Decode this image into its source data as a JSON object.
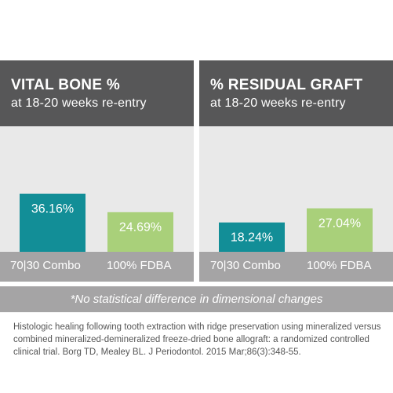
{
  "chart_data": [
    {
      "type": "bar",
      "title": "VITAL BONE %",
      "subtitle": "at 18-20 weeks re-entry",
      "categories": [
        "70|30 Combo",
        "100% FDBA"
      ],
      "values": [
        36.16,
        24.69
      ],
      "value_labels": [
        "36.16%",
        "24.69%"
      ],
      "colors": [
        "#128e97",
        "#a9d07a"
      ],
      "ylim": [
        0,
        40
      ]
    },
    {
      "type": "bar",
      "title": "% RESIDUAL GRAFT",
      "subtitle": "at 18-20 weeks re-entry",
      "categories": [
        "70|30 Combo",
        "100% FDBA"
      ],
      "values": [
        18.24,
        27.04
      ],
      "value_labels": [
        "18.24%",
        "27.04%"
      ],
      "colors": [
        "#128e97",
        "#a9d07a"
      ],
      "ylim": [
        0,
        40
      ]
    }
  ],
  "footnote": "*No statistical difference in dimensional changes",
  "citation": "Histologic healing following tooth extraction with ridge preservation using mineralized versus combined mineralized-demineralized freeze-dried bone allograft: a randomized controlled clinical trial. Borg TD, Mealey BL. J Periodontol. 2015 Mar;86(3):348-55."
}
